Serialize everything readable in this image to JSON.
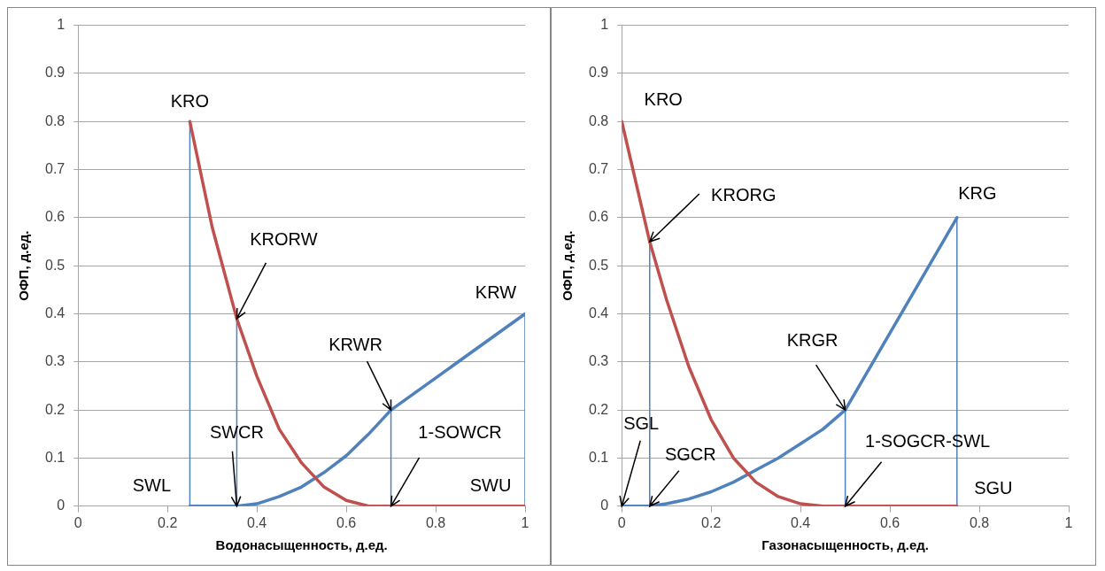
{
  "chart_data": [
    {
      "type": "line",
      "xlabel": "Водонасыщенность, д.ед.",
      "ylabel": "ОФП, д.ед.",
      "xlim": [
        0,
        1
      ],
      "xticks": [
        0,
        0.2,
        0.4,
        0.6,
        0.8,
        1
      ],
      "ylim": [
        0,
        1
      ],
      "yticks": [
        0,
        0.1,
        0.2,
        0.3,
        0.4,
        0.5,
        0.6,
        0.7,
        0.8,
        0.9,
        1
      ],
      "grid": "y",
      "legend": false,
      "marker": "none",
      "line_style": "solid",
      "series": [
        {
          "color": "#c0504d",
          "x": [
            0.25,
            0.3,
            0.355,
            0.4,
            0.45,
            0.5,
            0.55,
            0.6,
            0.65,
            0.7,
            1
          ],
          "values": [
            0.8,
            0.58,
            0.39,
            0.27,
            0.16,
            0.09,
            0.04,
            0.012,
            0,
            0,
            0
          ]
        },
        {
          "color": "#4f81bd",
          "x": [
            0.25,
            0.355,
            0.4,
            0.45,
            0.5,
            0.55,
            0.6,
            0.65,
            0.7,
            1
          ],
          "values": [
            0,
            0,
            0.005,
            0.02,
            0.04,
            0.07,
            0.105,
            0.15,
            0.2,
            0.4
          ]
        },
        {
          "color": "#4f81bd",
          "x": [
            0.25,
            0.25
          ],
          "values": [
            0,
            0.8
          ]
        },
        {
          "color": "#4f81bd",
          "x": [
            0.355,
            0.355
          ],
          "values": [
            0,
            0.39
          ]
        },
        {
          "color": "#4f81bd",
          "x": [
            0.7,
            0.7
          ],
          "values": [
            0,
            0.2
          ]
        },
        {
          "color": "#4f81bd",
          "x": [
            1,
            1
          ],
          "values": [
            0,
            0.4
          ]
        }
      ],
      "annotations": [
        {
          "text": "KRO",
          "x": 0.25,
          "y": 0.8
        },
        {
          "text": "KRORW",
          "x": 0.355,
          "y": 0.39
        },
        {
          "text": "KRW",
          "x": 1,
          "y": 0.4
        },
        {
          "text": "KRWR",
          "x": 0.7,
          "y": 0.2
        },
        {
          "text": "SWCR",
          "x": 0.355,
          "y": 0
        },
        {
          "text": "1-SOWCR",
          "x": 0.7,
          "y": 0
        },
        {
          "text": "SWL",
          "x": 0.25,
          "y": 0
        },
        {
          "text": "SWU",
          "x": 1,
          "y": 0
        }
      ]
    },
    {
      "type": "line",
      "xlabel": "Газонасыщенность, д.ед.",
      "ylabel": "ОФП, д.ед.",
      "xlim": [
        0,
        1
      ],
      "xticks": [
        0,
        0.2,
        0.4,
        0.6,
        0.8,
        1
      ],
      "ylim": [
        0,
        1
      ],
      "yticks": [
        0,
        0.1,
        0.2,
        0.3,
        0.4,
        0.5,
        0.6,
        0.7,
        0.8,
        0.9,
        1
      ],
      "grid": "y",
      "legend": false,
      "marker": "none",
      "line_style": "solid",
      "series": [
        {
          "color": "#c0504d",
          "x": [
            0,
            0.0625,
            0.1,
            0.15,
            0.2,
            0.25,
            0.3,
            0.35,
            0.4,
            0.45,
            0.5,
            0.75
          ],
          "values": [
            0.8,
            0.55,
            0.43,
            0.29,
            0.18,
            0.1,
            0.05,
            0.02,
            0.005,
            0,
            0,
            0
          ]
        },
        {
          "color": "#4f81bd",
          "x": [
            0,
            0.0625,
            0.1,
            0.15,
            0.2,
            0.25,
            0.3,
            0.35,
            0.4,
            0.45,
            0.5,
            0.75
          ],
          "values": [
            0,
            0,
            0.005,
            0.015,
            0.03,
            0.05,
            0.075,
            0.1,
            0.13,
            0.16,
            0.2,
            0.6
          ]
        },
        {
          "color": "#4f81bd",
          "x": [
            0.0625,
            0.0625
          ],
          "values": [
            0,
            0.55
          ]
        },
        {
          "color": "#4f81bd",
          "x": [
            0.5,
            0.5
          ],
          "values": [
            0,
            0.2
          ]
        },
        {
          "color": "#4f81bd",
          "x": [
            0.75,
            0.75
          ],
          "values": [
            0,
            0.6
          ]
        }
      ],
      "annotations": [
        {
          "text": "KRO",
          "x": 0,
          "y": 0.8
        },
        {
          "text": "KRORG",
          "x": 0.0625,
          "y": 0.55
        },
        {
          "text": "KRG",
          "x": 0.75,
          "y": 0.6
        },
        {
          "text": "KRGR",
          "x": 0.5,
          "y": 0.2
        },
        {
          "text": "SGL",
          "x": 0,
          "y": 0
        },
        {
          "text": "SGCR",
          "x": 0.0625,
          "y": 0
        },
        {
          "text": "1-SOGCR-SWL",
          "x": 0.5,
          "y": 0
        },
        {
          "text": "SGU",
          "x": 0.75,
          "y": 0
        }
      ]
    }
  ]
}
